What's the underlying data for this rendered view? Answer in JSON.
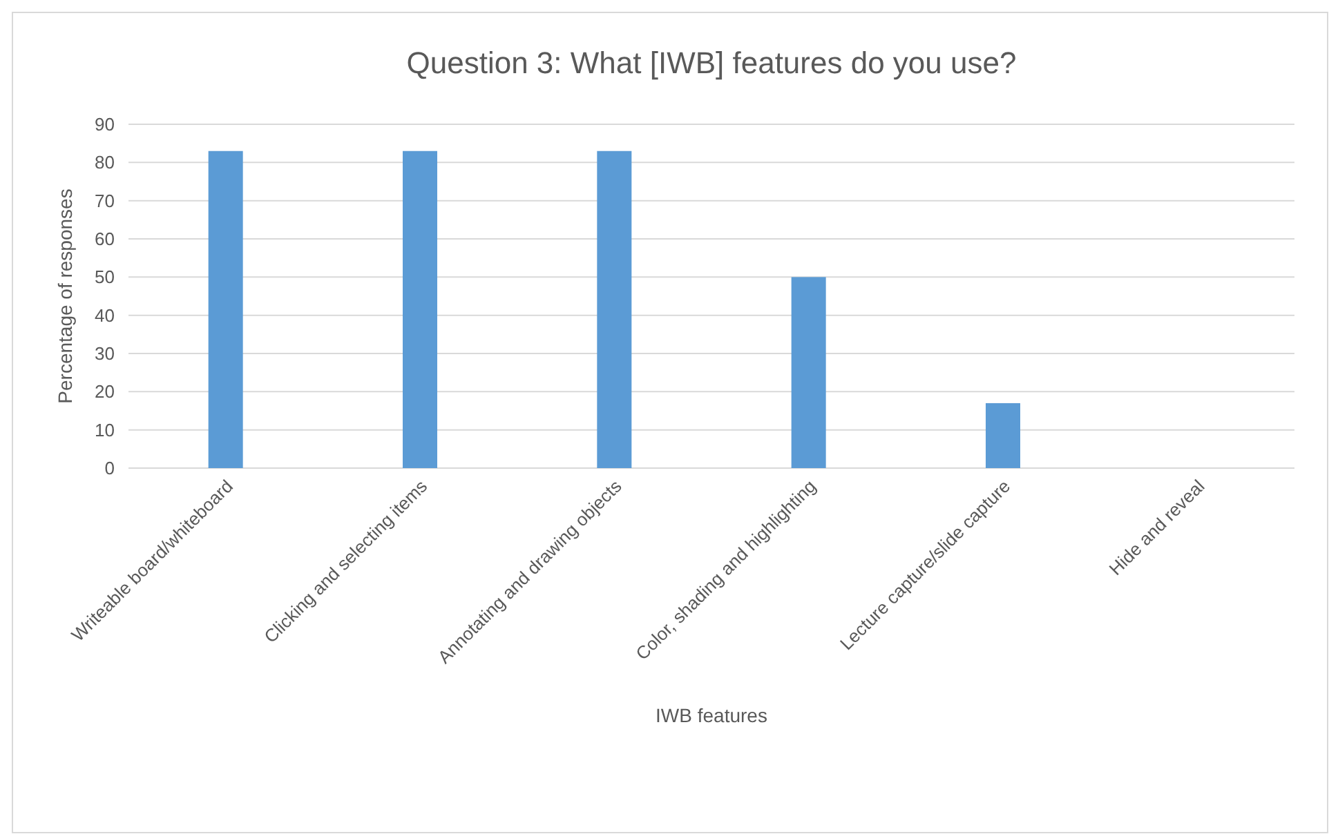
{
  "chart_data": {
    "type": "bar",
    "title": "Question 3: What [IWB] features do you use?",
    "xlabel": "IWB features",
    "ylabel": "Percentage of responses",
    "categories": [
      "Writeable board/whiteboard",
      "Clicking and selecting items",
      "Annotating and drawing objects",
      "Color, shading and highlighting",
      "Lecture capture/slide capture",
      "Hide and reveal"
    ],
    "values": [
      83,
      83,
      83,
      50,
      17,
      0
    ],
    "color": "#5b9bd5",
    "ylim": [
      0,
      90
    ],
    "yticks": [
      0,
      10,
      20,
      30,
      40,
      50,
      60,
      70,
      80,
      90
    ],
    "grid": "y"
  }
}
